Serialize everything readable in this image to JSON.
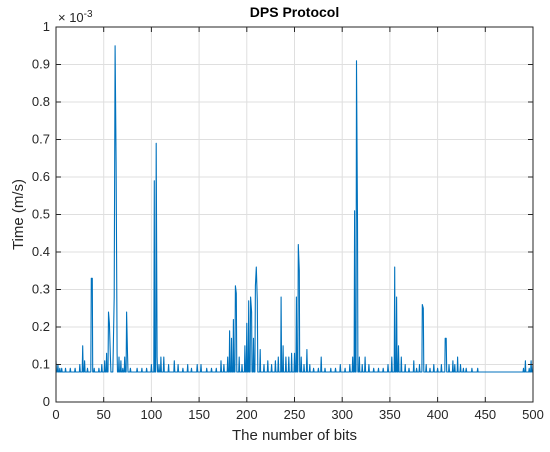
{
  "chart_data": {
    "type": "line",
    "title": "DPS Protocol",
    "xlabel": "The number of bits",
    "ylabel": "Time (m/s)",
    "y_exponent_label": "× 10",
    "y_exponent_power": "-3",
    "xlim": [
      0,
      500
    ],
    "ylim": [
      0,
      1
    ],
    "xticks": [
      0,
      50,
      100,
      150,
      200,
      250,
      300,
      350,
      400,
      450,
      500
    ],
    "xtick_labels": [
      "0",
      "50",
      "100",
      "150",
      "200",
      "250",
      "300",
      "350",
      "400",
      "450",
      "500"
    ],
    "yticks": [
      0,
      0.1,
      0.2,
      0.3,
      0.4,
      0.5,
      0.6,
      0.7,
      0.8,
      0.9,
      1
    ],
    "ytick_labels": [
      "0",
      "0.1",
      "0.2",
      "0.3",
      "0.4",
      "0.5",
      "0.6",
      "0.7",
      "0.8",
      "0.9",
      "1"
    ],
    "grid": true,
    "line_color": "#0072bd",
    "baseline": 0.08,
    "spikes": [
      [
        0,
        0.11
      ],
      [
        2,
        0.1
      ],
      [
        4,
        0.09
      ],
      [
        6,
        0.09
      ],
      [
        10,
        0.09
      ],
      [
        15,
        0.09
      ],
      [
        20,
        0.09
      ],
      [
        25,
        0.1
      ],
      [
        28,
        0.15
      ],
      [
        30,
        0.11
      ],
      [
        33,
        0.09
      ],
      [
        37,
        0.33
      ],
      [
        38,
        0.33
      ],
      [
        40,
        0.09
      ],
      [
        45,
        0.09
      ],
      [
        48,
        0.1
      ],
      [
        51,
        0.11
      ],
      [
        53,
        0.13
      ],
      [
        55,
        0.24
      ],
      [
        56,
        0.21
      ],
      [
        57,
        0.12
      ],
      [
        60,
        0.13
      ],
      [
        61,
        0.28
      ],
      [
        62,
        0.95
      ],
      [
        63,
        0.64
      ],
      [
        64,
        0.13
      ],
      [
        66,
        0.12
      ],
      [
        68,
        0.11
      ],
      [
        70,
        0.09
      ],
      [
        72,
        0.12
      ],
      [
        74,
        0.24
      ],
      [
        75,
        0.13
      ],
      [
        78,
        0.09
      ],
      [
        85,
        0.09
      ],
      [
        90,
        0.09
      ],
      [
        95,
        0.09
      ],
      [
        100,
        0.1
      ],
      [
        103,
        0.59
      ],
      [
        105,
        0.69
      ],
      [
        106,
        0.12
      ],
      [
        108,
        0.1
      ],
      [
        110,
        0.12
      ],
      [
        113,
        0.12
      ],
      [
        118,
        0.1
      ],
      [
        124,
        0.11
      ],
      [
        128,
        0.1
      ],
      [
        133,
        0.09
      ],
      [
        138,
        0.1
      ],
      [
        142,
        0.09
      ],
      [
        148,
        0.1
      ],
      [
        152,
        0.1
      ],
      [
        158,
        0.09
      ],
      [
        163,
        0.09
      ],
      [
        168,
        0.09
      ],
      [
        173,
        0.11
      ],
      [
        176,
        0.1
      ],
      [
        180,
        0.12
      ],
      [
        182,
        0.19
      ],
      [
        184,
        0.17
      ],
      [
        186,
        0.22
      ],
      [
        188,
        0.31
      ],
      [
        189,
        0.29
      ],
      [
        192,
        0.12
      ],
      [
        195,
        0.1
      ],
      [
        198,
        0.15
      ],
      [
        200,
        0.21
      ],
      [
        202,
        0.27
      ],
      [
        204,
        0.28
      ],
      [
        205,
        0.24
      ],
      [
        207,
        0.17
      ],
      [
        209,
        0.31
      ],
      [
        210,
        0.36
      ],
      [
        211,
        0.27
      ],
      [
        214,
        0.14
      ],
      [
        218,
        0.1
      ],
      [
        222,
        0.11
      ],
      [
        226,
        0.1
      ],
      [
        230,
        0.11
      ],
      [
        233,
        0.12
      ],
      [
        236,
        0.28
      ],
      [
        238,
        0.15
      ],
      [
        241,
        0.12
      ],
      [
        244,
        0.12
      ],
      [
        247,
        0.13
      ],
      [
        250,
        0.13
      ],
      [
        252,
        0.28
      ],
      [
        254,
        0.42
      ],
      [
        255,
        0.35
      ],
      [
        257,
        0.12
      ],
      [
        260,
        0.1
      ],
      [
        263,
        0.14
      ],
      [
        266,
        0.1
      ],
      [
        270,
        0.09
      ],
      [
        275,
        0.09
      ],
      [
        278,
        0.12
      ],
      [
        282,
        0.09
      ],
      [
        288,
        0.09
      ],
      [
        293,
        0.09
      ],
      [
        298,
        0.1
      ],
      [
        303,
        0.09
      ],
      [
        308,
        0.1
      ],
      [
        311,
        0.12
      ],
      [
        313,
        0.51
      ],
      [
        315,
        0.91
      ],
      [
        316,
        0.48
      ],
      [
        318,
        0.12
      ],
      [
        321,
        0.1
      ],
      [
        324,
        0.12
      ],
      [
        328,
        0.1
      ],
      [
        333,
        0.09
      ],
      [
        338,
        0.09
      ],
      [
        343,
        0.09
      ],
      [
        348,
        0.1
      ],
      [
        352,
        0.12
      ],
      [
        355,
        0.36
      ],
      [
        357,
        0.28
      ],
      [
        359,
        0.15
      ],
      [
        362,
        0.12
      ],
      [
        366,
        0.1
      ],
      [
        370,
        0.09
      ],
      [
        375,
        0.11
      ],
      [
        378,
        0.09
      ],
      [
        381,
        0.1
      ],
      [
        384,
        0.26
      ],
      [
        385,
        0.25
      ],
      [
        388,
        0.1
      ],
      [
        392,
        0.09
      ],
      [
        396,
        0.1
      ],
      [
        400,
        0.09
      ],
      [
        404,
        0.1
      ],
      [
        408,
        0.17
      ],
      [
        409,
        0.17
      ],
      [
        412,
        0.1
      ],
      [
        416,
        0.11
      ],
      [
        418,
        0.1
      ],
      [
        421,
        0.12
      ],
      [
        424,
        0.1
      ],
      [
        427,
        0.09
      ],
      [
        430,
        0.09
      ],
      [
        436,
        0.09
      ],
      [
        442,
        0.09
      ],
      [
        450,
        0.08
      ],
      [
        460,
        0.08
      ],
      [
        470,
        0.08
      ],
      [
        480,
        0.08
      ],
      [
        490,
        0.09
      ],
      [
        492,
        0.11
      ],
      [
        494,
        0.08
      ],
      [
        496,
        0.09
      ],
      [
        498,
        0.11
      ],
      [
        500,
        0.1
      ]
    ]
  }
}
